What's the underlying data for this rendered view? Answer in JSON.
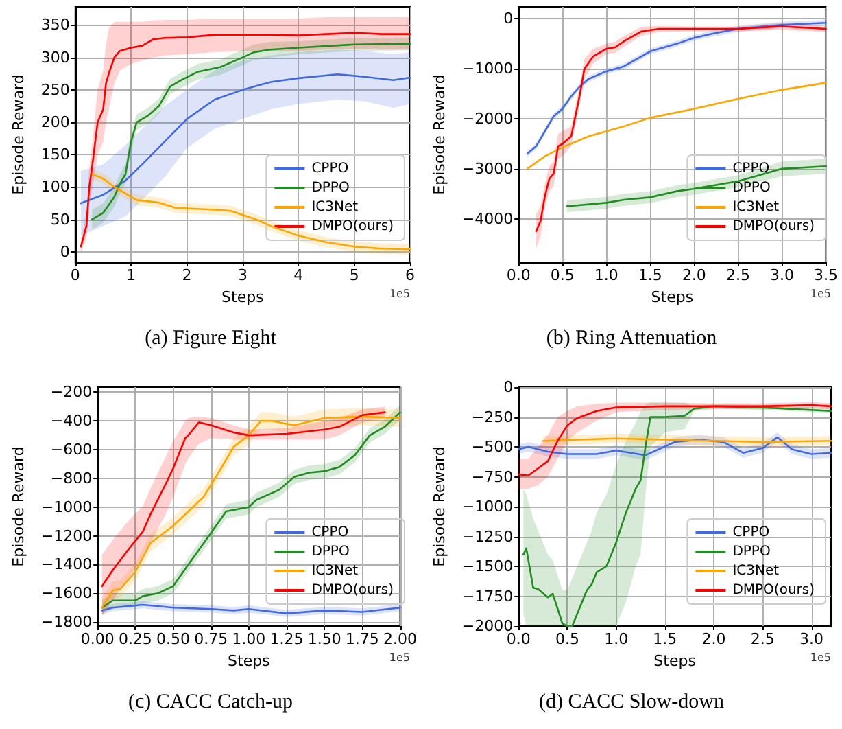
{
  "chart_data": [
    {
      "type": "line",
      "title": "(a) Figure Eight",
      "xlabel": "Steps",
      "ylabel": "Episode Reward",
      "annotations": [
        "1e5"
      ],
      "xlim": [
        0,
        6
      ],
      "ylim": [
        -16,
        378
      ],
      "xticks": [
        0,
        1,
        2,
        3,
        4,
        5,
        6
      ],
      "yticks": [
        0,
        50,
        100,
        150,
        200,
        250,
        300,
        350
      ],
      "grid": true,
      "legend": "bottom right",
      "series": [
        {
          "name": "CPPO",
          "color": "#4169e1",
          "x": [
            0.1,
            0.5,
            0.9,
            1.2,
            1.6,
            2.0,
            2.5,
            3.0,
            3.5,
            4.0,
            4.7,
            5.2,
            5.7,
            6.0
          ],
          "values": [
            75,
            88,
            110,
            135,
            170,
            205,
            235,
            250,
            262,
            268,
            274,
            270,
            265,
            269
          ],
          "lower": [
            25,
            40,
            55,
            80,
            115,
            160,
            190,
            205,
            220,
            228,
            235,
            232,
            222,
            228
          ],
          "upper": [
            125,
            135,
            165,
            190,
            225,
            250,
            280,
            295,
            303,
            308,
            312,
            310,
            305,
            308
          ]
        },
        {
          "name": "DPPO",
          "color": "#228b22",
          "x": [
            0.3,
            0.5,
            0.7,
            0.8,
            0.9,
            1.0,
            1.1,
            1.3,
            1.5,
            1.7,
            1.9,
            2.2,
            2.6,
            3.0,
            3.2,
            3.5,
            4.0,
            5.0,
            6.0
          ],
          "values": [
            50,
            60,
            85,
            105,
            120,
            170,
            200,
            210,
            225,
            255,
            265,
            278,
            285,
            300,
            308,
            312,
            315,
            320,
            321
          ],
          "lower": [
            35,
            45,
            70,
            90,
            105,
            155,
            188,
            198,
            213,
            243,
            253,
            266,
            273,
            288,
            296,
            300,
            305,
            310,
            311
          ],
          "upper": [
            65,
            75,
            100,
            120,
            135,
            185,
            212,
            222,
            237,
            267,
            277,
            290,
            297,
            312,
            320,
            324,
            325,
            330,
            331
          ]
        },
        {
          "name": "IC3Net",
          "color": "#ffa500",
          "x": [
            0.3,
            0.5,
            0.7,
            0.9,
            1.1,
            1.5,
            1.8,
            2.5,
            2.8,
            3.0,
            3.3,
            3.5,
            4.0,
            4.5,
            5.0,
            5.5,
            6.0
          ],
          "values": [
            120,
            113,
            100,
            90,
            80,
            76,
            68,
            65,
            63,
            57,
            48,
            40,
            25,
            15,
            8,
            5,
            4
          ],
          "lower": [
            112,
            105,
            92,
            82,
            72,
            68,
            60,
            57,
            55,
            49,
            40,
            32,
            17,
            7,
            0,
            -3,
            -4
          ],
          "upper": [
            128,
            121,
            108,
            98,
            88,
            84,
            76,
            73,
            71,
            65,
            56,
            48,
            33,
            23,
            16,
            13,
            12
          ]
        },
        {
          "name": "DMPO(ours)",
          "color": "#ff0000",
          "x": [
            0.1,
            0.2,
            0.25,
            0.3,
            0.4,
            0.5,
            0.55,
            0.6,
            0.7,
            0.8,
            1.0,
            1.2,
            1.4,
            1.6,
            2.0,
            2.5,
            3.0,
            3.5,
            4.0,
            4.5,
            5.0,
            5.5,
            6.0
          ],
          "values": [
            8,
            40,
            100,
            130,
            200,
            220,
            260,
            275,
            300,
            310,
            315,
            318,
            328,
            330,
            331,
            335,
            335,
            335,
            334,
            336,
            338,
            336,
            336
          ],
          "lower": [
            0,
            20,
            70,
            95,
            150,
            170,
            200,
            220,
            260,
            280,
            290,
            295,
            300,
            303,
            305,
            308,
            310,
            310,
            310,
            312,
            313,
            312,
            312
          ],
          "upper": [
            20,
            60,
            130,
            165,
            250,
            280,
            320,
            345,
            355,
            355,
            355,
            355,
            357,
            358,
            358,
            360,
            360,
            360,
            360,
            362,
            362,
            362,
            362
          ]
        }
      ]
    },
    {
      "type": "line",
      "title": "(b) Ring Attenuation",
      "xlabel": "Steps",
      "ylabel": "Episode Reward",
      "annotations": [
        "1e5"
      ],
      "xlim": [
        0,
        3.5
      ],
      "ylim": [
        -4870,
        240
      ],
      "xticks": [
        {
          "value": 0,
          "label": "0.0"
        },
        {
          "value": 0.5,
          "label": "0.5"
        },
        {
          "value": 1,
          "label": "1.0"
        },
        {
          "value": 1.5,
          "label": "1.5"
        },
        {
          "value": 2,
          "label": "2.0"
        },
        {
          "value": 2.5,
          "label": "2.5"
        },
        {
          "value": 3,
          "label": "3.0"
        },
        {
          "value": 3.5,
          "label": "3.5"
        }
      ],
      "yticks": [
        -4000,
        -3000,
        -2000,
        -1000,
        0
      ],
      "grid": true,
      "legend": "bottom right",
      "series": [
        {
          "name": "CPPO",
          "color": "#4169e1",
          "x": [
            0.1,
            0.2,
            0.3,
            0.4,
            0.5,
            0.6,
            0.7,
            0.8,
            1.0,
            1.2,
            1.5,
            1.8,
            2.0,
            2.2,
            2.5,
            2.8,
            3.0,
            3.5
          ],
          "values": [
            -2700,
            -2550,
            -2250,
            -1950,
            -1800,
            -1550,
            -1350,
            -1200,
            -1050,
            -950,
            -650,
            -500,
            -380,
            -300,
            -200,
            -150,
            -120,
            -80
          ],
          "lower": [
            -2760,
            -2610,
            -2310,
            -2010,
            -1860,
            -1610,
            -1410,
            -1260,
            -1110,
            -1010,
            -710,
            -560,
            -440,
            -360,
            -260,
            -210,
            -180,
            -140
          ],
          "upper": [
            -2640,
            -2490,
            -2190,
            -1890,
            -1740,
            -1490,
            -1290,
            -1140,
            -990,
            -890,
            -590,
            -440,
            -320,
            -240,
            -140,
            -90,
            -60,
            -20
          ]
        },
        {
          "name": "DPPO",
          "color": "#228b22",
          "x": [
            0.55,
            1.0,
            1.2,
            1.5,
            1.8,
            2.0,
            2.5,
            3.0,
            3.5
          ],
          "values": [
            -3750,
            -3680,
            -3620,
            -3570,
            -3450,
            -3400,
            -3250,
            -3000,
            -2950
          ],
          "lower": [
            -3870,
            -3800,
            -3740,
            -3690,
            -3570,
            -3520,
            -3370,
            -3150,
            -3100
          ],
          "upper": [
            -3630,
            -3560,
            -3500,
            -3450,
            -3330,
            -3280,
            -3130,
            -2850,
            -2800
          ]
        },
        {
          "name": "IC3Net",
          "color": "#ffa500",
          "x": [
            0.1,
            0.3,
            0.5,
            0.8,
            1.0,
            1.2,
            1.5,
            2.0,
            2.5,
            3.0,
            3.5
          ],
          "values": [
            -3000,
            -2750,
            -2570,
            -2350,
            -2250,
            -2150,
            -1980,
            -1800,
            -1600,
            -1420,
            -1280
          ]
        },
        {
          "name": "DMPO(ours)",
          "color": "#ff0000",
          "x": [
            0.2,
            0.25,
            0.3,
            0.35,
            0.4,
            0.45,
            0.5,
            0.6,
            0.7,
            0.75,
            0.85,
            1.0,
            1.1,
            1.2,
            1.4,
            1.6,
            2.0,
            2.5,
            3.0,
            3.5
          ],
          "values": [
            -4250,
            -4050,
            -3550,
            -3200,
            -3100,
            -2550,
            -2500,
            -2350,
            -1500,
            -1000,
            -750,
            -600,
            -570,
            -450,
            -250,
            -200,
            -200,
            -200,
            -150,
            -200
          ],
          "lower": [
            -4600,
            -4350,
            -3800,
            -3450,
            -3350,
            -2800,
            -2750,
            -2550,
            -1700,
            -1200,
            -900,
            -700,
            -680,
            -560,
            -340,
            -260,
            -250,
            -250,
            -220,
            -260
          ],
          "upper": [
            -3900,
            -3750,
            -3300,
            -2950,
            -2850,
            -2300,
            -2250,
            -2150,
            -1300,
            -800,
            -600,
            -500,
            -460,
            -340,
            -160,
            -140,
            -150,
            -150,
            -80,
            -140
          ]
        }
      ]
    },
    {
      "type": "line",
      "title": "(c) CACC Catch-up",
      "xlabel": "Steps",
      "ylabel": "Episode Reward",
      "annotations": [
        "1e5"
      ],
      "xlim": [
        0,
        2
      ],
      "ylim": [
        -1828,
        -165
      ],
      "xticks": [
        {
          "value": 0,
          "label": "0.00"
        },
        {
          "value": 0.25,
          "label": "0.25"
        },
        {
          "value": 0.5,
          "label": "0.50"
        },
        {
          "value": 0.75,
          "label": "0.75"
        },
        {
          "value": 1,
          "label": "1.00"
        },
        {
          "value": 1.25,
          "label": "1.25"
        },
        {
          "value": 1.5,
          "label": "1.50"
        },
        {
          "value": 1.75,
          "label": "1.75"
        },
        {
          "value": 2,
          "label": "2.00"
        }
      ],
      "yticks": [
        -1800,
        -1600,
        -1400,
        -1200,
        -1000,
        -800,
        -600,
        -400,
        -200
      ],
      "grid": true,
      "legend": "bottom right",
      "series": [
        {
          "name": "CPPO",
          "color": "#4169e1",
          "x": [
            0.03,
            0.1,
            0.3,
            0.5,
            0.75,
            0.9,
            1.0,
            1.25,
            1.5,
            1.75,
            2.0
          ],
          "values": [
            -1720,
            -1700,
            -1680,
            -1700,
            -1710,
            -1720,
            -1710,
            -1740,
            -1720,
            -1730,
            -1700
          ],
          "lower": [
            -1745,
            -1725,
            -1705,
            -1725,
            -1735,
            -1745,
            -1735,
            -1765,
            -1745,
            -1755,
            -1725
          ],
          "upper": [
            -1695,
            -1675,
            -1655,
            -1675,
            -1685,
            -1695,
            -1685,
            -1715,
            -1695,
            -1705,
            -1675
          ]
        },
        {
          "name": "DPPO",
          "color": "#228b22",
          "x": [
            0.03,
            0.1,
            0.25,
            0.3,
            0.4,
            0.5,
            0.6,
            0.75,
            0.85,
            1.0,
            1.05,
            1.2,
            1.3,
            1.4,
            1.5,
            1.6,
            1.7,
            1.8,
            1.9,
            2.0
          ],
          "values": [
            -1700,
            -1650,
            -1650,
            -1620,
            -1600,
            -1550,
            -1400,
            -1180,
            -1030,
            -1000,
            -950,
            -880,
            -790,
            -760,
            -750,
            -720,
            -640,
            -500,
            -440,
            -340
          ],
          "lower": [
            -1750,
            -1700,
            -1700,
            -1670,
            -1650,
            -1600,
            -1450,
            -1230,
            -1080,
            -1050,
            -1000,
            -930,
            -840,
            -810,
            -800,
            -770,
            -690,
            -550,
            -490,
            -390
          ],
          "upper": [
            -1650,
            -1600,
            -1600,
            -1570,
            -1550,
            -1500,
            -1350,
            -1130,
            -980,
            -950,
            -900,
            -830,
            -740,
            -710,
            -700,
            -670,
            -590,
            -450,
            -390,
            -290
          ]
        },
        {
          "name": "IC3Net",
          "color": "#ffa500",
          "x": [
            0.03,
            0.1,
            0.15,
            0.25,
            0.35,
            0.5,
            0.6,
            0.7,
            0.8,
            0.9,
            1.0,
            1.08,
            1.15,
            1.3,
            1.5,
            1.75,
            2.0
          ],
          "values": [
            -1700,
            -1580,
            -1570,
            -1450,
            -1250,
            -1130,
            -1030,
            -930,
            -760,
            -580,
            -500,
            -400,
            -400,
            -430,
            -380,
            -370,
            -380
          ],
          "lower": [
            -1760,
            -1640,
            -1630,
            -1510,
            -1310,
            -1190,
            -1090,
            -990,
            -820,
            -640,
            -560,
            -460,
            -460,
            -490,
            -440,
            -430,
            -440
          ],
          "upper": [
            -1640,
            -1520,
            -1510,
            -1390,
            -1190,
            -1070,
            -970,
            -870,
            -700,
            -520,
            -440,
            -340,
            -340,
            -370,
            -320,
            -310,
            -320
          ]
        },
        {
          "name": "DMPO(ours)",
          "color": "#ff0000",
          "x": [
            0.03,
            0.1,
            0.2,
            0.3,
            0.35,
            0.45,
            0.5,
            0.58,
            0.6,
            0.67,
            0.75,
            0.9,
            1.0,
            1.25,
            1.5,
            1.6,
            1.75,
            1.9
          ],
          "values": [
            -1550,
            -1440,
            -1300,
            -1170,
            -1050,
            -840,
            -730,
            -520,
            -500,
            -410,
            -430,
            -480,
            -500,
            -490,
            -460,
            -440,
            -360,
            -340
          ],
          "lower": [
            -1750,
            -1650,
            -1500,
            -1350,
            -1250,
            -1050,
            -930,
            -700,
            -660,
            -560,
            -520,
            -530,
            -530,
            -530,
            -530,
            -500,
            -410,
            -380
          ],
          "upper": [
            -1330,
            -1230,
            -1100,
            -990,
            -870,
            -650,
            -540,
            -400,
            -380,
            -370,
            -380,
            -430,
            -460,
            -450,
            -400,
            -380,
            -320,
            -300
          ]
        }
      ]
    },
    {
      "type": "line",
      "title": "(d) CACC Slow-down",
      "xlabel": "Steps",
      "ylabel": "Episode Reward",
      "annotations": [
        "1e5"
      ],
      "xlim": [
        0,
        3.2
      ],
      "ylim": [
        -2000,
        0
      ],
      "xticks": [
        {
          "value": 0,
          "label": "0.0"
        },
        {
          "value": 0.5,
          "label": "0.5"
        },
        {
          "value": 1,
          "label": "1.0"
        },
        {
          "value": 1.5,
          "label": "1.5"
        },
        {
          "value": 2,
          "label": "2.0"
        },
        {
          "value": 2.5,
          "label": "2.5"
        },
        {
          "value": 3,
          "label": "3.0"
        }
      ],
      "yticks": [
        -2000,
        -1750,
        -1500,
        -1250,
        -1000,
        -750,
        -500,
        -250,
        0
      ],
      "grid": true,
      "legend": "bottom right",
      "series": [
        {
          "name": "CPPO",
          "color": "#4169e1",
          "x": [
            0.0,
            0.1,
            0.3,
            0.5,
            0.8,
            1.0,
            1.3,
            1.6,
            1.85,
            2.1,
            2.3,
            2.5,
            2.65,
            2.8,
            3.0,
            3.2
          ],
          "values": [
            -520,
            -500,
            -540,
            -560,
            -560,
            -530,
            -570,
            -460,
            -440,
            -460,
            -550,
            -510,
            -420,
            -520,
            -560,
            -550
          ],
          "lower": [
            -560,
            -540,
            -580,
            -600,
            -600,
            -570,
            -610,
            -500,
            -480,
            -500,
            -590,
            -550,
            -460,
            -560,
            -600,
            -590
          ],
          "upper": [
            -480,
            -460,
            -500,
            -520,
            -520,
            -490,
            -530,
            -420,
            -400,
            -420,
            -510,
            -470,
            -380,
            -480,
            -520,
            -510
          ]
        },
        {
          "name": "DPPO",
          "color": "#228b22",
          "x": [
            0.05,
            0.08,
            0.15,
            0.2,
            0.3,
            0.35,
            0.45,
            0.5,
            0.55,
            0.7,
            0.75,
            0.8,
            0.9,
            1.0,
            1.1,
            1.2,
            1.25,
            1.3,
            1.35,
            1.5,
            1.7,
            1.8,
            2.0,
            2.5,
            3.2
          ],
          "values": [
            -1400,
            -1350,
            -1680,
            -1690,
            -1760,
            -1730,
            -1980,
            -2000,
            -2000,
            -1700,
            -1650,
            -1550,
            -1500,
            -1300,
            -1050,
            -850,
            -780,
            -500,
            -250,
            -250,
            -240,
            -180,
            -160,
            -170,
            -200
          ],
          "lower": [
            -1900,
            -2000,
            -2000,
            -2000,
            -2000,
            -2000,
            -2000,
            -2000,
            -2000,
            -2000,
            -2000,
            -2000,
            -2000,
            -2000,
            -1800,
            -1500,
            -1400,
            -900,
            -500,
            -380,
            -350,
            -200,
            -180,
            -190,
            -215
          ],
          "upper": [
            -850,
            -900,
            -1100,
            -1200,
            -1400,
            -1450,
            -1700,
            -1700,
            -1600,
            -1300,
            -1200,
            -1050,
            -900,
            -650,
            -450,
            -300,
            -200,
            -150,
            -130,
            -130,
            -130,
            -160,
            -140,
            -150,
            -175
          ]
        },
        {
          "name": "IC3Net",
          "color": "#ffa500",
          "x": [
            0.25,
            1.0,
            2.0,
            2.5,
            3.2
          ],
          "values": [
            -450,
            -430,
            -450,
            -460,
            -450
          ],
          "lower": [
            -490,
            -470,
            -490,
            -500,
            -490
          ],
          "upper": [
            -410,
            -390,
            -410,
            -420,
            -410
          ]
        },
        {
          "name": "DMPO(ours)",
          "color": "#ff0000",
          "x": [
            0.0,
            0.1,
            0.2,
            0.3,
            0.4,
            0.5,
            0.6,
            0.7,
            0.8,
            1.0,
            1.5,
            2.0,
            2.5,
            3.0,
            3.2
          ],
          "values": [
            -730,
            -740,
            -680,
            -620,
            -450,
            -320,
            -260,
            -230,
            -200,
            -170,
            -160,
            -160,
            -160,
            -150,
            -160
          ],
          "lower": [
            -850,
            -850,
            -820,
            -750,
            -600,
            -450,
            -380,
            -330,
            -280,
            -210,
            -190,
            -185,
            -185,
            -175,
            -185
          ],
          "upper": [
            -600,
            -600,
            -500,
            -400,
            -250,
            -200,
            -160,
            -150,
            -140,
            -130,
            -130,
            -135,
            -135,
            -125,
            -135
          ]
        }
      ]
    }
  ]
}
